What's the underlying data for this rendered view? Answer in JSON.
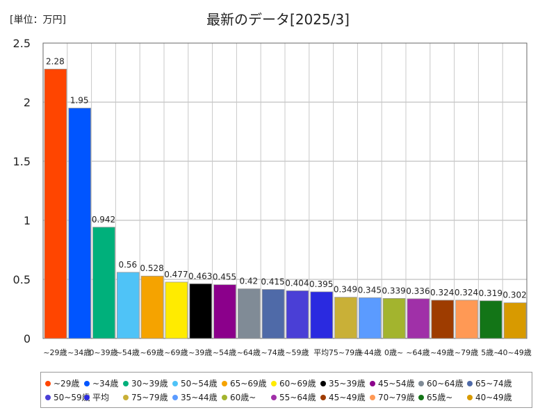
{
  "unit_label": "[単位：万円]",
  "chart_data": {
    "type": "bar",
    "title": "最新のデータ[2025/3]",
    "ylim": [
      0,
      2.5
    ],
    "yticks": [
      "0",
      "0.5",
      "1",
      "1.5",
      "2",
      "2.5"
    ],
    "grid": true,
    "legend_position": "bottom",
    "categories": [
      "~29歳",
      "~34歳",
      "30~39歳",
      "50~54歳",
      "65~69歳",
      "60~69歳",
      "35~39歳",
      "45~54歳",
      "60~64歳",
      "65~74歳",
      "50~59歳",
      "平均",
      "75~79歳",
      "35~44歳",
      "60歳~",
      "55~64歳",
      "45~49歳",
      "70~79歳",
      "65歳~",
      "40~49歳"
    ],
    "tick_labels": [
      "~29歳",
      "~34歳",
      "0~39歳",
      "~54歳",
      "~69歳",
      "~69歳",
      "~39歳",
      "~54歳",
      "~64歳",
      "~74歳",
      "~59歳",
      "平均",
      "75~79歳",
      "~44歳",
      "0歳~",
      "~64歳",
      "~49歳",
      "~79歳",
      "5歳~",
      "40~49歳"
    ],
    "values": [
      2.28,
      1.95,
      0.942,
      0.56,
      0.528,
      0.477,
      0.463,
      0.455,
      0.42,
      0.415,
      0.404,
      0.395,
      0.349,
      0.345,
      0.339,
      0.336,
      0.324,
      0.324,
      0.319,
      0.302
    ],
    "data_labels": [
      "2.28",
      "1.95",
      "0.942",
      "0.56",
      "0.528",
      "0.477",
      "0.463",
      "0.455",
      "0.42",
      "0.415",
      "0.404",
      "0.395",
      "0.349",
      "0.345",
      "0.339",
      "0.336",
      "0.324",
      "0.324",
      "0.319",
      "0.302"
    ],
    "colors": [
      "#ff4500",
      "#0055ff",
      "#00b07b",
      "#4fc3f7",
      "#f5a300",
      "#ffeb00",
      "#000000",
      "#8b008b",
      "#808b96",
      "#4f6aa8",
      "#4a3fd6",
      "#2a2ae0",
      "#c9b037",
      "#5b9bff",
      "#a3b42e",
      "#a030a8",
      "#9e3c00",
      "#ff9955",
      "#137517",
      "#d89a00"
    ],
    "legend_items": [
      "~29歳",
      "~34歳",
      "30~39歳",
      "50~54歳",
      "65~69歳",
      "60~69歳",
      "35~39歳",
      "45~54歳",
      "60~64歳",
      "65~74歳",
      "50~59歳",
      "平均",
      "75~79歳",
      "35~44歳",
      "60歳~",
      "55~64歳",
      "45~49歳",
      "70~79歳",
      "65歳~",
      "40~49歳"
    ]
  }
}
